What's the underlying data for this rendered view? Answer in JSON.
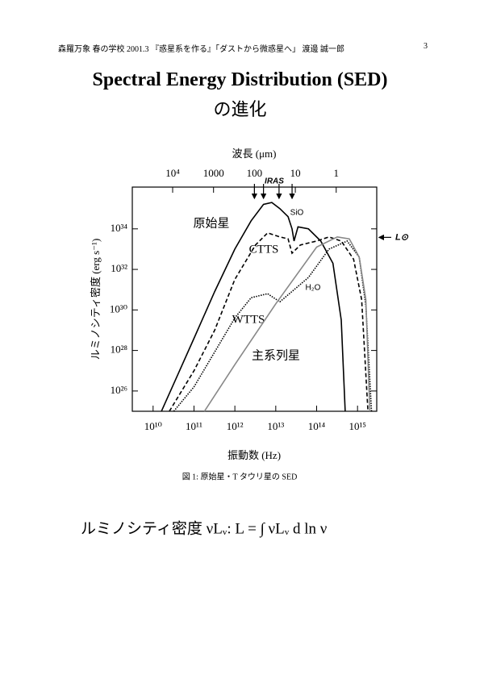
{
  "header": {
    "text": "森羅万象 春の学校 2001.3 『惑星系を作る』「ダストから微惑星へ」 渡邊 誠一郎",
    "page": "3"
  },
  "title": {
    "line1": "Spectral Energy Distribution (SED)",
    "line2": "の進化"
  },
  "chart_data": {
    "type": "line",
    "xscale": "log",
    "yscale": "log",
    "xlabel": "振動数 (Hz)",
    "ylabel": "ルミノシティ密度 (erg s⁻¹)",
    "x2label": "波長 (μm)",
    "xlim": [
      3100000000.0,
      2950000000000000.0
    ],
    "ylim": [
      1e+25,
      1.15e+36
    ],
    "x2lim": [
      97000,
      0.102
    ],
    "xticks": [
      {
        "value": 10000000000.0,
        "label": "10¹⁰"
      },
      {
        "value": 100000000000.0,
        "label": "10¹¹"
      },
      {
        "value": 1000000000000.0,
        "label": "10¹²"
      },
      {
        "value": 10000000000000.0,
        "label": "10¹³"
      },
      {
        "value": 100000000000000.0,
        "label": "10¹⁴"
      },
      {
        "value": 1000000000000000.0,
        "label": "10¹⁵"
      }
    ],
    "yticks": [
      {
        "value": 1e+26,
        "label": "10²⁶"
      },
      {
        "value": 1e+28,
        "label": "10²⁸"
      },
      {
        "value": 1e+30,
        "label": "10³⁰"
      },
      {
        "value": 1e+32,
        "label": "10³²"
      },
      {
        "value": 1e+34,
        "label": "10³⁴"
      }
    ],
    "x2ticks": [
      {
        "value": 10000,
        "label": "10⁴"
      },
      1000,
      100,
      10,
      1
    ],
    "series": [
      {
        "name": "原始星",
        "color": "#000000",
        "style": "solid",
        "x": [
          16000000000.0,
          40000000000.0,
          100000000000.0,
          320000000000.0,
          1000000000000.0,
          2500000000000.0,
          5000000000000.0,
          8000000000000.0,
          12600000000000.0,
          20000000000000.0,
          25000000000000.0,
          28000000000000.0,
          35000000000000.0,
          63000000000000.0,
          126000000000000.0,
          250000000000000.0,
          400000000000000.0,
          500000000000000.0
        ],
        "values": [
          1e+25,
          6.3e+26,
          4e+28,
          8e+30,
          1e+33,
          2.5e+34,
          1.6e+35,
          2e+35,
          1e+35,
          4e+34,
          1e+34,
          2.5e+33,
          1.26e+34,
          1e+34,
          2.5e+33,
          2e+32,
          3.2e+29,
          1e+25
        ]
      },
      {
        "name": "CTTS",
        "color": "#000000",
        "style": "dashed",
        "x": [
          25000000000.0,
          100000000000.0,
          320000000000.0,
          1000000000000.0,
          3200000000000.0,
          6300000000000.0,
          12600000000000.0,
          20000000000000.0,
          25000000000000.0,
          40000000000000.0,
          100000000000000.0,
          200000000000000.0,
          400000000000000.0,
          800000000000000.0,
          1260000000000000.0,
          1800000000000000.0
        ],
        "values": [
          1e+25,
          1e+27,
          1e+29,
          3.2e+31,
          1.6e+33,
          6.3e+33,
          4e+33,
          3.2e+33,
          6.3e+32,
          1.6e+33,
          2.5e+33,
          4e+33,
          2.5e+33,
          3.2e+32,
          3.2e+30,
          1e+25
        ]
      },
      {
        "name": "WTTS",
        "color": "#000000",
        "style": "dotted",
        "x": [
          32000000000.0,
          100000000000.0,
          1000000000000.0,
          2500000000000.0,
          6300000000000.0,
          12600000000000.0,
          63000000000000.0,
          200000000000000.0,
          560000000000000.0,
          1100000000000000.0,
          1600000000000000.0,
          2200000000000000.0
        ],
        "values": [
          1e+25,
          1.6e+26,
          4e+29,
          4e+30,
          6.3e+30,
          2.5e+30,
          4e+31,
          1e+33,
          2.5e+33,
          4e+32,
          1.6e+30,
          1e+25
        ]
      },
      {
        "name": "主系列星",
        "color": "#888888",
        "style": "solid",
        "x": [
          180000000000.0,
          1000000000000.0,
          10000000000000.0,
          100000000000000.0,
          320000000000000.0,
          630000000000000.0,
          1100000000000000.0,
          1600000000000000.0,
          2000000000000000.0
        ],
        "values": [
          1e+25,
          2e+27,
          2e+30,
          1.26e+33,
          4e+33,
          3.2e+33,
          4e+32,
          3.2e+30,
          1e+25
        ]
      }
    ],
    "annotations": [
      {
        "text": "SiO"
      },
      {
        "text": "H₂O"
      }
    ],
    "iras": {
      "label": "IRAS",
      "bands": [
        100,
        60,
        25,
        12
      ]
    },
    "lsun": {
      "label": "L⊙",
      "value": 3.8e+33
    }
  },
  "caption": "図 1: 原始星・T タウリ星の SED",
  "equation": "ルミノシティ密度 νLᵥ: L = ∫ νLᵥ d ln ν"
}
